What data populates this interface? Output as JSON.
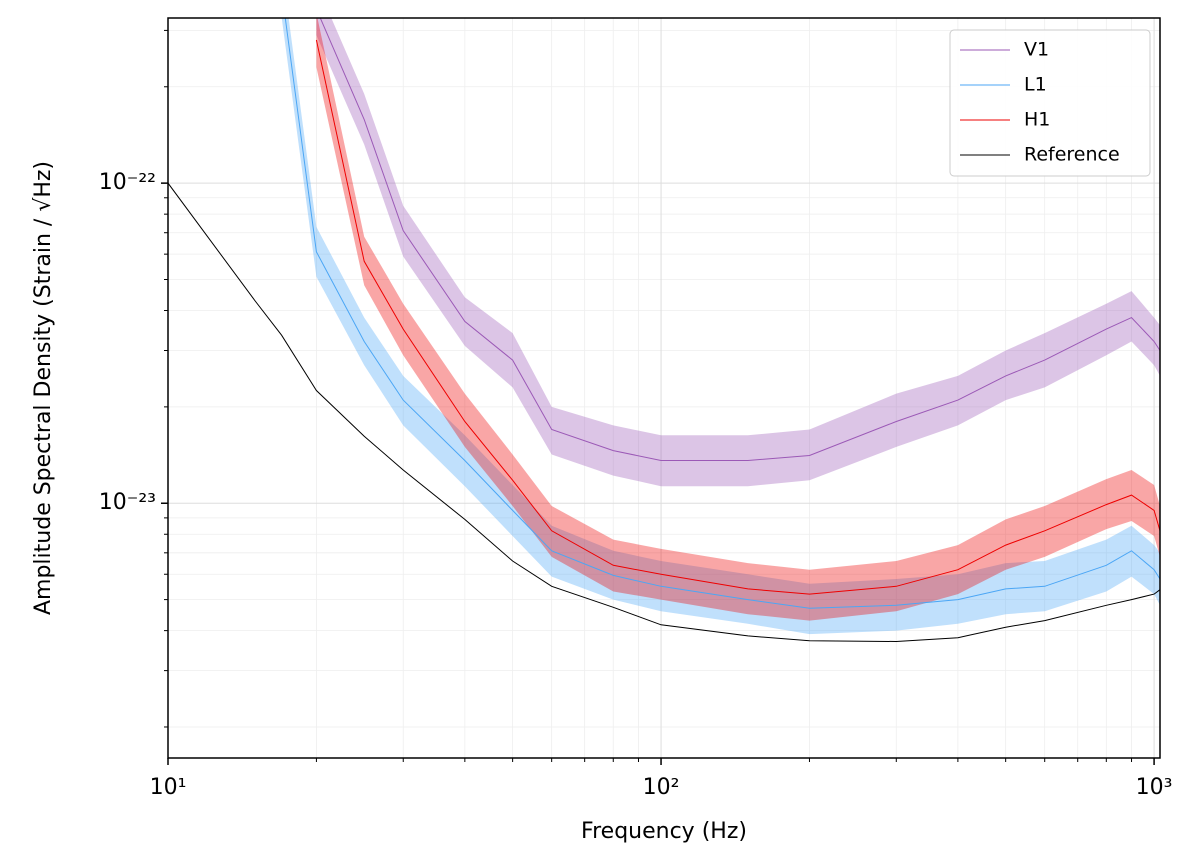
{
  "chart_data": {
    "type": "line",
    "xlabel": "Frequency (Hz)",
    "ylabel": "Amplitude Spectral Density (Strain / √Hz)",
    "xscale": "log",
    "yscale": "log",
    "grid": true,
    "legend": "upper right",
    "xlim": [
      10,
      1028
    ],
    "ylim": [
      1.6e-24,
      3.28e-22
    ],
    "xticks": [
      {
        "value": 10,
        "label": "10¹"
      },
      {
        "value": 100,
        "label": "10²"
      },
      {
        "value": 1000,
        "label": "10³"
      }
    ],
    "xminor_ticks": [
      20,
      30,
      40,
      50,
      60,
      70,
      80,
      90,
      200,
      300,
      400,
      500,
      600,
      700,
      800,
      900
    ],
    "yticks": [
      {
        "value": 1e-23,
        "label": "10⁻²³"
      },
      {
        "value": 1e-22,
        "label": "10⁻²²"
      }
    ],
    "yminor_ticks": [
      2e-24,
      3e-24,
      4e-24,
      5e-24,
      6e-24,
      7e-24,
      8e-24,
      9e-24,
      2e-23,
      3e-23,
      4e-23,
      5e-23,
      6e-23,
      7e-23,
      8e-23,
      9e-23,
      2e-22,
      3e-22
    ],
    "x": [
      10,
      15,
      17,
      20,
      25,
      30,
      40,
      50,
      60,
      80,
      100,
      150,
      200,
      300,
      400,
      500,
      600,
      800,
      900,
      1000,
      1028
    ],
    "series": [
      {
        "name": "V1",
        "color": "#9b59b6",
        "values": [
          null,
          null,
          null,
          3.5e-22,
          1.58e-22,
          7.1e-23,
          3.7e-23,
          2.8e-23,
          1.7e-23,
          1.46e-23,
          1.36e-23,
          1.36e-23,
          1.41e-23,
          1.8e-23,
          2.1e-23,
          2.5e-23,
          2.8e-23,
          3.5e-23,
          3.8e-23,
          3.2e-23,
          3e-23
        ],
        "band_upper": [
          null,
          null,
          null,
          4.2e-22,
          1.9e-22,
          8.5e-23,
          4.4e-23,
          3.4e-23,
          2e-23,
          1.75e-23,
          1.63e-23,
          1.63e-23,
          1.7e-23,
          2.2e-23,
          2.5e-23,
          3e-23,
          3.4e-23,
          4.2e-23,
          4.6e-23,
          3.8e-23,
          3.6e-23
        ],
        "band_lower": [
          null,
          null,
          null,
          2.9e-22,
          1.32e-22,
          5.9e-23,
          3.1e-23,
          2.3e-23,
          1.42e-23,
          1.22e-23,
          1.13e-23,
          1.13e-23,
          1.18e-23,
          1.5e-23,
          1.75e-23,
          2.1e-23,
          2.3e-23,
          2.9e-23,
          3.2e-23,
          2.7e-23,
          2.5e-23
        ]
      },
      {
        "name": "L1",
        "color": "#4ba6f5",
        "values": [
          null,
          null,
          4e-22,
          6.1e-23,
          3.2e-23,
          2.1e-23,
          1.36e-23,
          9.5e-24,
          7.1e-24,
          5.95e-24,
          5.5e-24,
          5e-24,
          4.7e-24,
          4.8e-24,
          5e-24,
          5.4e-24,
          5.5e-24,
          6.4e-24,
          7.1e-24,
          6.2e-24,
          5.8e-24
        ],
        "band_upper": [
          null,
          null,
          4.8e-22,
          7.3e-23,
          3.8e-23,
          2.5e-23,
          1.63e-23,
          1.14e-23,
          8.5e-24,
          7.1e-24,
          6.6e-24,
          6e-24,
          5.6e-24,
          5.8e-24,
          6e-24,
          6.5e-24,
          6.6e-24,
          7.7e-24,
          8.5e-24,
          7.4e-24,
          7e-24
        ],
        "band_lower": [
          null,
          null,
          3.3e-22,
          5.1e-23,
          2.7e-23,
          1.75e-23,
          1.13e-23,
          7.9e-24,
          5.9e-24,
          5e-24,
          4.6e-24,
          4.2e-24,
          3.9e-24,
          4e-24,
          4.2e-24,
          4.5e-24,
          4.6e-24,
          5.3e-24,
          5.9e-24,
          5.2e-24,
          4.8e-24
        ]
      },
      {
        "name": "H1",
        "color": "#ee0000",
        "values": [
          null,
          null,
          null,
          2.8e-22,
          5.7e-23,
          3.5e-23,
          1.8e-23,
          1.18e-23,
          8.2e-24,
          6.4e-24,
          6e-24,
          5.4e-24,
          5.2e-24,
          5.5e-24,
          6.2e-24,
          7.4e-24,
          8.2e-24,
          9.9e-24,
          1.06e-23,
          9.5e-24,
          8.2e-24
        ],
        "band_upper": [
          null,
          null,
          null,
          3.4e-22,
          6.8e-23,
          4.2e-23,
          2.2e-23,
          1.42e-23,
          9.8e-24,
          7.7e-24,
          7.2e-24,
          6.5e-24,
          6.2e-24,
          6.6e-24,
          7.4e-24,
          8.9e-24,
          9.8e-24,
          1.19e-23,
          1.27e-23,
          1.14e-23,
          9.8e-24
        ],
        "band_lower": [
          null,
          null,
          null,
          2.3e-22,
          4.8e-23,
          2.9e-23,
          1.5e-23,
          9.8e-24,
          6.8e-24,
          5.3e-24,
          5e-24,
          4.5e-24,
          4.3e-24,
          4.6e-24,
          5.2e-24,
          6.2e-24,
          6.8e-24,
          8.3e-24,
          8.8e-24,
          7.9e-24,
          6.8e-24
        ]
      },
      {
        "name": "Reference",
        "color": "#000000",
        "values": [
          1e-22,
          4.3e-23,
          3.35e-23,
          2.25e-23,
          1.62e-23,
          1.27e-23,
          8.9e-24,
          6.6e-24,
          5.5e-24,
          4.73e-24,
          4.17e-24,
          3.85e-24,
          3.72e-24,
          3.7e-24,
          3.8e-24,
          4.1e-24,
          4.3e-24,
          4.8e-24,
          5e-24,
          5.2e-24,
          5.37e-24
        ]
      }
    ]
  }
}
